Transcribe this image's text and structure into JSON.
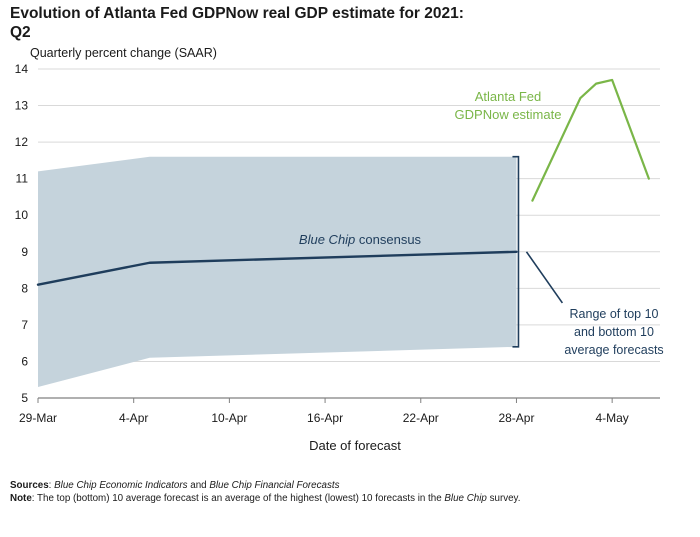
{
  "chart_data": {
    "type": "line",
    "title_line1": "Evolution of Atlanta Fed GDPNow real GDP estimate for 2021:",
    "title_line2": "Q2",
    "ylabel": "Quarterly percent change (SAAR)",
    "xlabel": "Date of forecast",
    "ylim": [
      5,
      14
    ],
    "yticks": [
      "5",
      "6",
      "7",
      "8",
      "9",
      "10",
      "11",
      "12",
      "13",
      "14"
    ],
    "xlim": [
      0,
      39
    ],
    "xticks": [
      {
        "label": "29-Mar",
        "day": 0
      },
      {
        "label": "4-Apr",
        "day": 6
      },
      {
        "label": "10-Apr",
        "day": 12
      },
      {
        "label": "16-Apr",
        "day": 18
      },
      {
        "label": "22-Apr",
        "day": 24
      },
      {
        "label": "28-Apr",
        "day": 30
      },
      {
        "label": "4-May",
        "day": 36
      }
    ],
    "grid": true,
    "series": [
      {
        "name": "Blue Chip consensus",
        "label_italic": "Blue Chip",
        "label_rest": " consensus",
        "color": "#1f3d5c",
        "points": [
          [
            0,
            8.1
          ],
          [
            7,
            8.7
          ],
          [
            30,
            9.0
          ]
        ]
      },
      {
        "name": "Atlanta Fed GDPNow estimate",
        "label_line1": "Atlanta Fed",
        "label_line2": "GDPNow estimate",
        "color": "#7ab648",
        "points": [
          [
            31,
            10.4
          ],
          [
            34,
            13.2
          ],
          [
            35,
            13.6
          ],
          [
            36,
            13.7
          ],
          [
            38.3,
            11.0
          ]
        ]
      }
    ],
    "range_band": {
      "name": "Range of top 10 and bottom 10 average forecasts",
      "label_lines": [
        "Range of top 10",
        "and bottom 10",
        "average forecasts"
      ],
      "color": "#c5d3dc",
      "upper": [
        [
          0,
          11.2
        ],
        [
          7,
          11.6
        ],
        [
          30,
          11.6
        ]
      ],
      "lower": [
        [
          0,
          5.3
        ],
        [
          7,
          6.1
        ],
        [
          30,
          6.4
        ]
      ]
    }
  },
  "footer": {
    "sources_label": "Sources",
    "sources_text_1": "Blue Chip Economic Indicators",
    "sources_and": " and ",
    "sources_text_2": "Blue Chip Financial Forecasts",
    "note_label": "Note",
    "note_text_1": ": The top (bottom) 10 average forecast is an average of the highest (lowest) 10 forecasts in the ",
    "note_italic": "Blue Chip",
    "note_text_2": " survey."
  }
}
